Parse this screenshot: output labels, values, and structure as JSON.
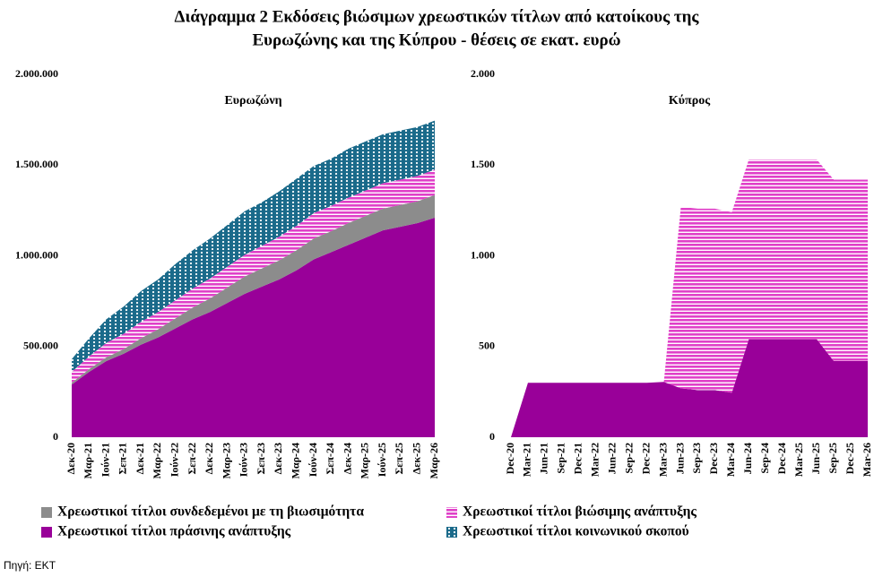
{
  "title_line1": "Διάγραμμα 2  Εκδόσεις βιώσιμων χρεωστικών τίτλων από κατοίκους της",
  "title_line2": "Ευρωζώνης και της Κύπρου - θέσεις σε εκατ. ευρώ",
  "source": "Πηγή: ΕΚΤ",
  "chart_data": [
    {
      "type": "stacked_area",
      "title": "Ευρωζώνη",
      "categories": [
        "Δεκ-20",
        "Μαρ-21",
        "Ιούν-21",
        "Σεπ-21",
        "Δεκ-21",
        "Μαρ-22",
        "Ιούν-22",
        "Σεπ-22",
        "Δεκ-22",
        "Μαρ-23",
        "Ιούν-23",
        "Σεπ-23",
        "Δεκ-23",
        "Μαρ-24",
        "Ιούν-24",
        "Σεπ-24",
        "Δεκ-24",
        "Μαρ-25",
        "Ιούν-25",
        "Σεπ-25",
        "Δεκ-25",
        "Μαρ-26"
      ],
      "series": [
        {
          "name": "Χρεωστικοί τίτλοι πράσινης ανάπτυξης",
          "color": "#990099",
          "pattern": "solid",
          "values": [
            290,
            360,
            420,
            460,
            510,
            550,
            600,
            650,
            690,
            740,
            790,
            830,
            870,
            920,
            980,
            1020,
            1060,
            1100,
            1140,
            1160,
            1180,
            1210
          ]
        },
        {
          "name": "Χρεωστικοί τίτλοι συνδεδεμένοι με τη βιωσιμότητα",
          "color": "#8c8c8c",
          "pattern": "solid",
          "values": [
            10,
            15,
            20,
            25,
            35,
            45,
            55,
            65,
            75,
            85,
            95,
            100,
            105,
            110,
            115,
            115,
            120,
            120,
            120,
            120,
            120,
            125
          ]
        },
        {
          "name": "Χρεωστικοί τίτλοι βιώσιμης ανάπτυξης",
          "color": "#e040c8",
          "pattern": "stripes",
          "values": [
            60,
            70,
            80,
            85,
            90,
            95,
            100,
            105,
            110,
            115,
            120,
            125,
            130,
            135,
            140,
            140,
            140,
            140,
            140,
            140,
            140,
            140
          ]
        },
        {
          "name": "Χρεωστικοί τίτλοι κοινωνικού σκοπού",
          "color": "#1a6a8a",
          "pattern": "dots",
          "values": [
            70,
            100,
            130,
            150,
            170,
            180,
            200,
            210,
            220,
            230,
            240,
            240,
            250,
            260,
            260,
            260,
            270,
            270,
            270,
            270,
            270,
            270
          ]
        }
      ],
      "ylim": [
        0,
        2000000
      ],
      "yticks": [
        0,
        {
          "value": 500000,
          "label": "500.000"
        },
        {
          "value": 1000000,
          "label": "1.000.000"
        },
        {
          "value": 1500000,
          "label": "1.500.000"
        },
        {
          "value": 2000000,
          "label": "2.000.000"
        }
      ],
      "value_scale": 1000
    },
    {
      "type": "stacked_area",
      "title": "Κύπρος",
      "categories": [
        "Dec-20",
        "Mar-21",
        "Jun-21",
        "Sep-21",
        "Dec-21",
        "Mar-22",
        "Jun-22",
        "Sep-22",
        "Dec-22",
        "Mar-23",
        "Jun-23",
        "Sep-23",
        "Dec-23",
        "Mar-24",
        "Jun-24",
        "Sep-24",
        "Dec-24",
        "Mar-25",
        "Jun-25",
        "Sep-25",
        "Dec-25",
        "Mar-26"
      ],
      "series": [
        {
          "color": "#990099",
          "pattern": "solid",
          "values": [
            0,
            300,
            300,
            300,
            300,
            300,
            300,
            300,
            300,
            305,
            270,
            260,
            260,
            245,
            540,
            540,
            540,
            540,
            540,
            420,
            420,
            420
          ]
        },
        {
          "color": "#e040c8",
          "pattern": "stripes",
          "values": [
            0,
            0,
            0,
            0,
            0,
            0,
            0,
            0,
            0,
            0,
            1000,
            1000,
            1000,
            995,
            990,
            990,
            990,
            990,
            990,
            1000,
            1000,
            1000
          ]
        }
      ],
      "ylim": [
        0,
        2000
      ],
      "yticks": [
        0,
        500,
        {
          "value": 1000,
          "label": "1.000"
        },
        {
          "value": 1500,
          "label": "1.500"
        },
        {
          "value": 2000,
          "label": "2.000"
        }
      ],
      "value_scale": 1
    }
  ]
}
